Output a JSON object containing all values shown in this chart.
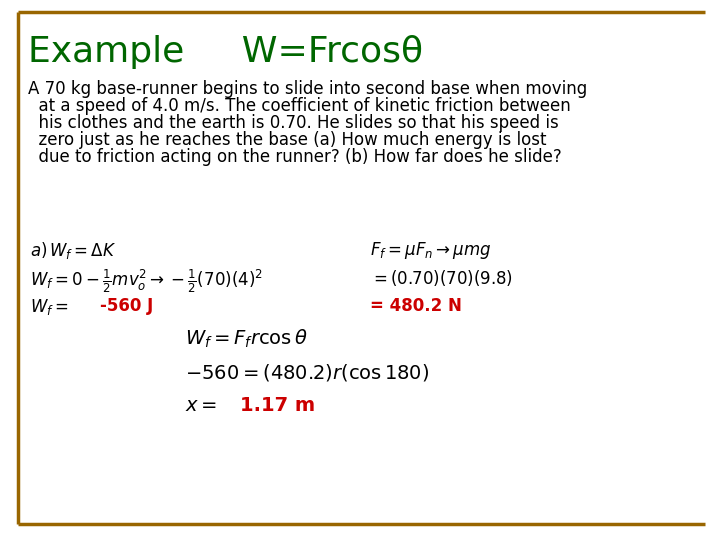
{
  "title": "Example     W=Frcosθ",
  "title_color": "#006600",
  "title_fontsize": 26,
  "border_color": "#996600",
  "border_linewidth": 2.5,
  "bg_color": "#ffffff",
  "body_text_lines": [
    "A 70 kg base-runner begins to slide into second base when moving",
    "  at a speed of 4.0 m/s. The coefficient of kinetic friction between",
    "  his clothes and the earth is 0.70. He slides so that his speed is",
    "  zero just as he reaches the base (a) How much energy is lost",
    "  due to friction acting on the runner? (b) How far does he slide?"
  ],
  "body_fontsize": 12,
  "body_color": "#000000",
  "eq3_red": "-560 J",
  "eq6_red": "= 480.2 N",
  "eq9_red": "1.17 m",
  "red_color": "#cc0000",
  "math_color": "#000000",
  "math_fontsize": 12,
  "bottom_line_color": "#996600"
}
